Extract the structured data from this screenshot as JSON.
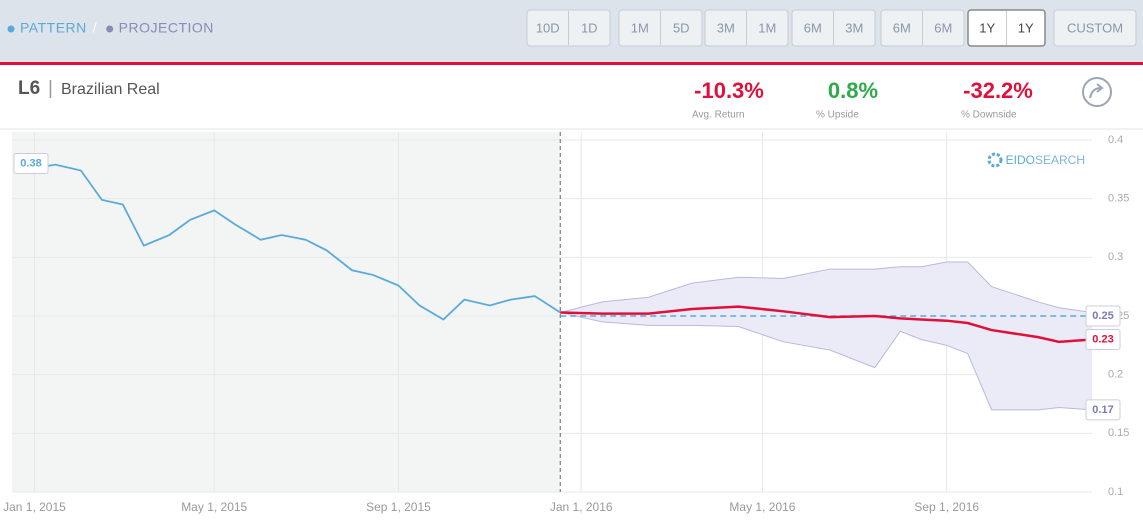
{
  "toolbar": {
    "legend": [
      {
        "label": "PATTERN",
        "color": "#5aaad8"
      },
      {
        "label": "PROJECTION",
        "color": "#8a8ab8"
      }
    ],
    "separator": "/",
    "buttons": [
      [
        "10D",
        "1D"
      ],
      [
        "1M",
        "5D"
      ],
      [
        "3M",
        "1M"
      ],
      [
        "6M",
        "3M"
      ],
      [
        "6M",
        "6M"
      ],
      [
        "1Y",
        "1Y"
      ]
    ],
    "active": 5,
    "custom": "CUSTOM"
  },
  "header": {
    "ticker": "L6",
    "separator": "|",
    "name": "Brazilian Real",
    "stats": [
      {
        "value": "-10.3%",
        "label": "Avg. Return",
        "color": "#e0103a"
      },
      {
        "value": "0.8%",
        "label": "% Upside",
        "color": "#2eaa4a"
      },
      {
        "value": "-32.2%",
        "label": "% Downside",
        "color": "#e0103a"
      }
    ],
    "logo": [
      "EIDO",
      "SEARCH"
    ]
  },
  "chart_data": {
    "type": "line",
    "xlim": [
      "2014-12-17",
      "2016-12-07"
    ],
    "xticks": [
      {
        "value": "2015-01-01",
        "label": "Jan 1, 2015"
      },
      {
        "value": "2015-05-01",
        "label": "May 1, 2015"
      },
      {
        "value": "2015-09-01",
        "label": "Sep 1, 2015"
      },
      {
        "value": "2016-01-01",
        "label": "Jan 1, 2016"
      },
      {
        "value": "2016-05-01",
        "label": "May 1, 2016"
      },
      {
        "value": "2016-09-01",
        "label": "Sep 1, 2016"
      }
    ],
    "ylim": [
      0.1,
      0.4
    ],
    "yticks": [
      0.1,
      0.15,
      0.2,
      0.25,
      0.3,
      0.35,
      0.4
    ],
    "grid": true,
    "series": [
      {
        "name": "PATTERN",
        "color": "#5aaad8",
        "x": [
          "2015-01-01",
          "2015-01-15",
          "2015-02-01",
          "2015-02-15",
          "2015-03-01",
          "2015-03-15",
          "2015-04-01",
          "2015-04-15",
          "2015-05-01",
          "2015-05-15",
          "2015-06-01",
          "2015-06-15",
          "2015-07-01",
          "2015-07-15",
          "2015-08-01",
          "2015-08-15",
          "2015-09-01",
          "2015-09-15",
          "2015-10-01",
          "2015-10-15",
          "2015-11-01",
          "2015-11-15",
          "2015-12-01",
          "2015-12-18"
        ],
        "values": [
          0.376,
          0.379,
          0.374,
          0.349,
          0.345,
          0.31,
          0.319,
          0.332,
          0.34,
          0.328,
          0.315,
          0.319,
          0.315,
          0.306,
          0.289,
          0.285,
          0.276,
          0.259,
          0.247,
          0.264,
          0.259,
          0.264,
          0.267,
          0.253
        ]
      },
      {
        "name": "PROJECTION",
        "color": "#e0103a",
        "x": [
          "2015-12-18",
          "2016-01-15",
          "2016-02-15",
          "2016-03-15",
          "2016-04-15",
          "2016-05-15",
          "2016-06-15",
          "2016-07-15",
          "2016-08-01",
          "2016-08-15",
          "2016-09-01",
          "2016-09-15",
          "2016-10-01",
          "2016-11-01",
          "2016-11-15",
          "2016-12-07"
        ],
        "values": [
          0.253,
          0.252,
          0.252,
          0.256,
          0.258,
          0.254,
          0.249,
          0.25,
          0.248,
          0.247,
          0.246,
          0.244,
          0.238,
          0.232,
          0.228,
          0.23
        ]
      },
      {
        "color": "#b8b8e0",
        "x": [
          "2015-12-18",
          "2016-01-15",
          "2016-02-15",
          "2016-03-15",
          "2016-04-15",
          "2016-05-15",
          "2016-06-15",
          "2016-07-15",
          "2016-08-01",
          "2016-08-15",
          "2016-09-01",
          "2016-09-15",
          "2016-10-01",
          "2016-11-01",
          "2016-11-15",
          "2016-12-07"
        ],
        "values": [
          0.253,
          0.262,
          0.266,
          0.278,
          0.283,
          0.282,
          0.29,
          0.29,
          0.292,
          0.292,
          0.296,
          0.296,
          0.275,
          0.262,
          0.257,
          0.253
        ]
      },
      {
        "color": "#b8b8e0",
        "x": [
          "2015-12-18",
          "2016-01-15",
          "2016-02-15",
          "2016-03-15",
          "2016-04-15",
          "2016-05-15",
          "2016-06-15",
          "2016-07-15",
          "2016-08-01",
          "2016-08-15",
          "2016-09-01",
          "2016-09-15",
          "2016-10-01",
          "2016-11-01",
          "2016-11-15",
          "2016-12-07"
        ],
        "values": [
          0.253,
          0.245,
          0.242,
          0.242,
          0.241,
          0.228,
          0.221,
          0.206,
          0.237,
          0.23,
          0.225,
          0.218,
          0.17,
          0.17,
          0.172,
          0.17
        ]
      }
    ],
    "reference_line": {
      "value": 0.25,
      "color": "#5aaad8"
    },
    "annotations": [
      {
        "value": 0.38,
        "label": "0.38",
        "color": "#5aaad8",
        "side": "left"
      },
      {
        "value": 0.25,
        "label": "0.25",
        "color": "#7a7ab8",
        "side": "right"
      },
      {
        "value": 0.23,
        "label": "0.23",
        "color": "#e0103a",
        "side": "right"
      },
      {
        "value": 0.17,
        "label": "0.17",
        "color": "#7a7ab8",
        "side": "right"
      }
    ]
  }
}
